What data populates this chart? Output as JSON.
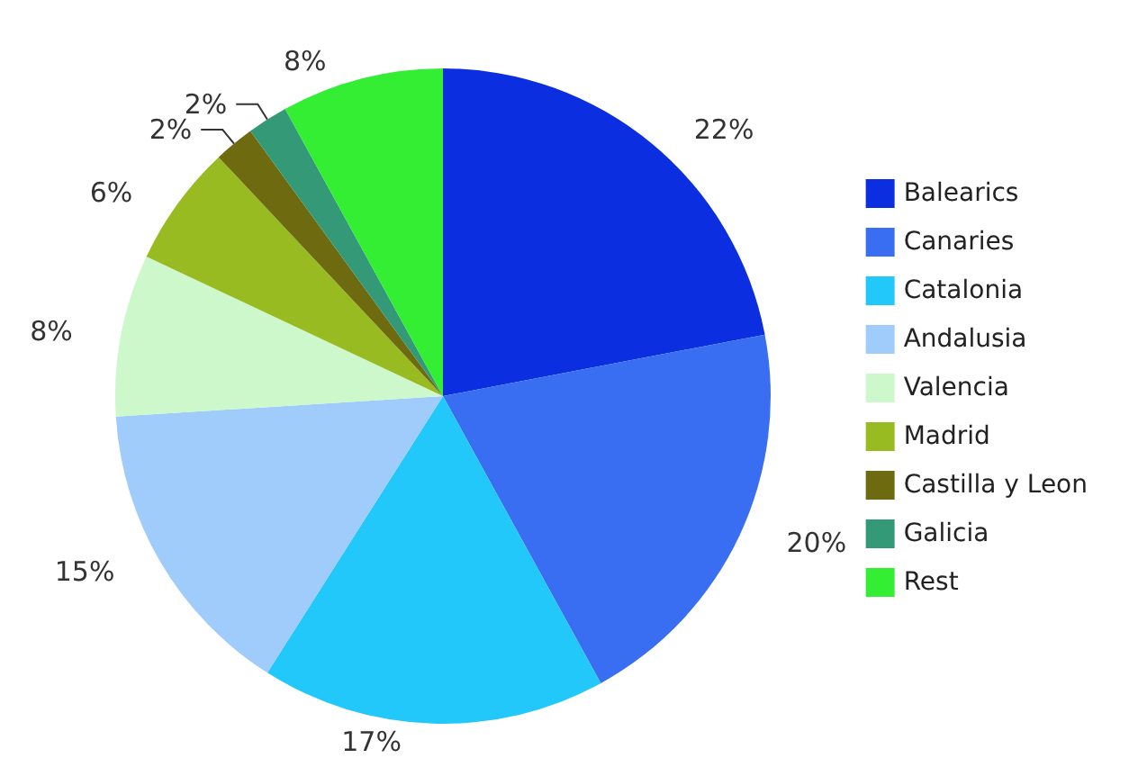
{
  "chart_data": {
    "type": "pie",
    "categories": [
      "Balearics",
      "Canaries",
      "Catalonia",
      "Andalusia",
      "Valencia",
      "Madrid",
      "Castilla y Leon",
      "Galicia",
      "Rest"
    ],
    "values": [
      22,
      20,
      17,
      15,
      8,
      6,
      2,
      2,
      8
    ],
    "colors": [
      "#0b2fe0",
      "#3a6ef2",
      "#22c8fa",
      "#9fccfa",
      "#ccf8cc",
      "#99bb22",
      "#6e6a10",
      "#339977",
      "#33ee33"
    ],
    "value_labels": [
      "22%",
      "20%",
      "17%",
      "15%",
      "8%",
      "6%",
      "2%",
      "2%",
      "8%"
    ],
    "legend": "right"
  }
}
